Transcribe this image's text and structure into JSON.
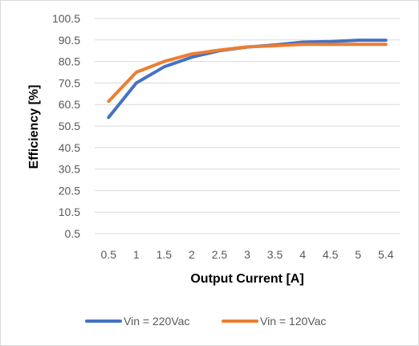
{
  "chart_data": {
    "type": "line",
    "title": "",
    "xlabel": "Output Current [A]",
    "ylabel": "Efficiency [%]",
    "categories": [
      "0.5",
      "1",
      "1.5",
      "2",
      "2.5",
      "3",
      "3.5",
      "4",
      "4.5",
      "5",
      "5.4"
    ],
    "y_ticks": [
      "0.5",
      "10.5",
      "20.5",
      "30.5",
      "40.5",
      "50.5",
      "60.5",
      "70.5",
      "80.5",
      "90.5",
      "100.5"
    ],
    "ylim": [
      0.5,
      100.5
    ],
    "grid": "horizontal",
    "legend_position": "bottom",
    "series": [
      {
        "name": "Vin = 220Vac",
        "color": "#4472c4",
        "values": [
          54.5,
          70.5,
          78.0,
          82.5,
          85.5,
          87.2,
          88.2,
          89.5,
          89.8,
          90.4,
          90.4
        ]
      },
      {
        "name": "Vin = 120Vac",
        "color": "#ed7d31",
        "values": [
          62.0,
          75.5,
          80.5,
          84.0,
          85.8,
          87.3,
          87.8,
          88.5,
          88.5,
          88.5,
          88.5
        ]
      }
    ]
  }
}
